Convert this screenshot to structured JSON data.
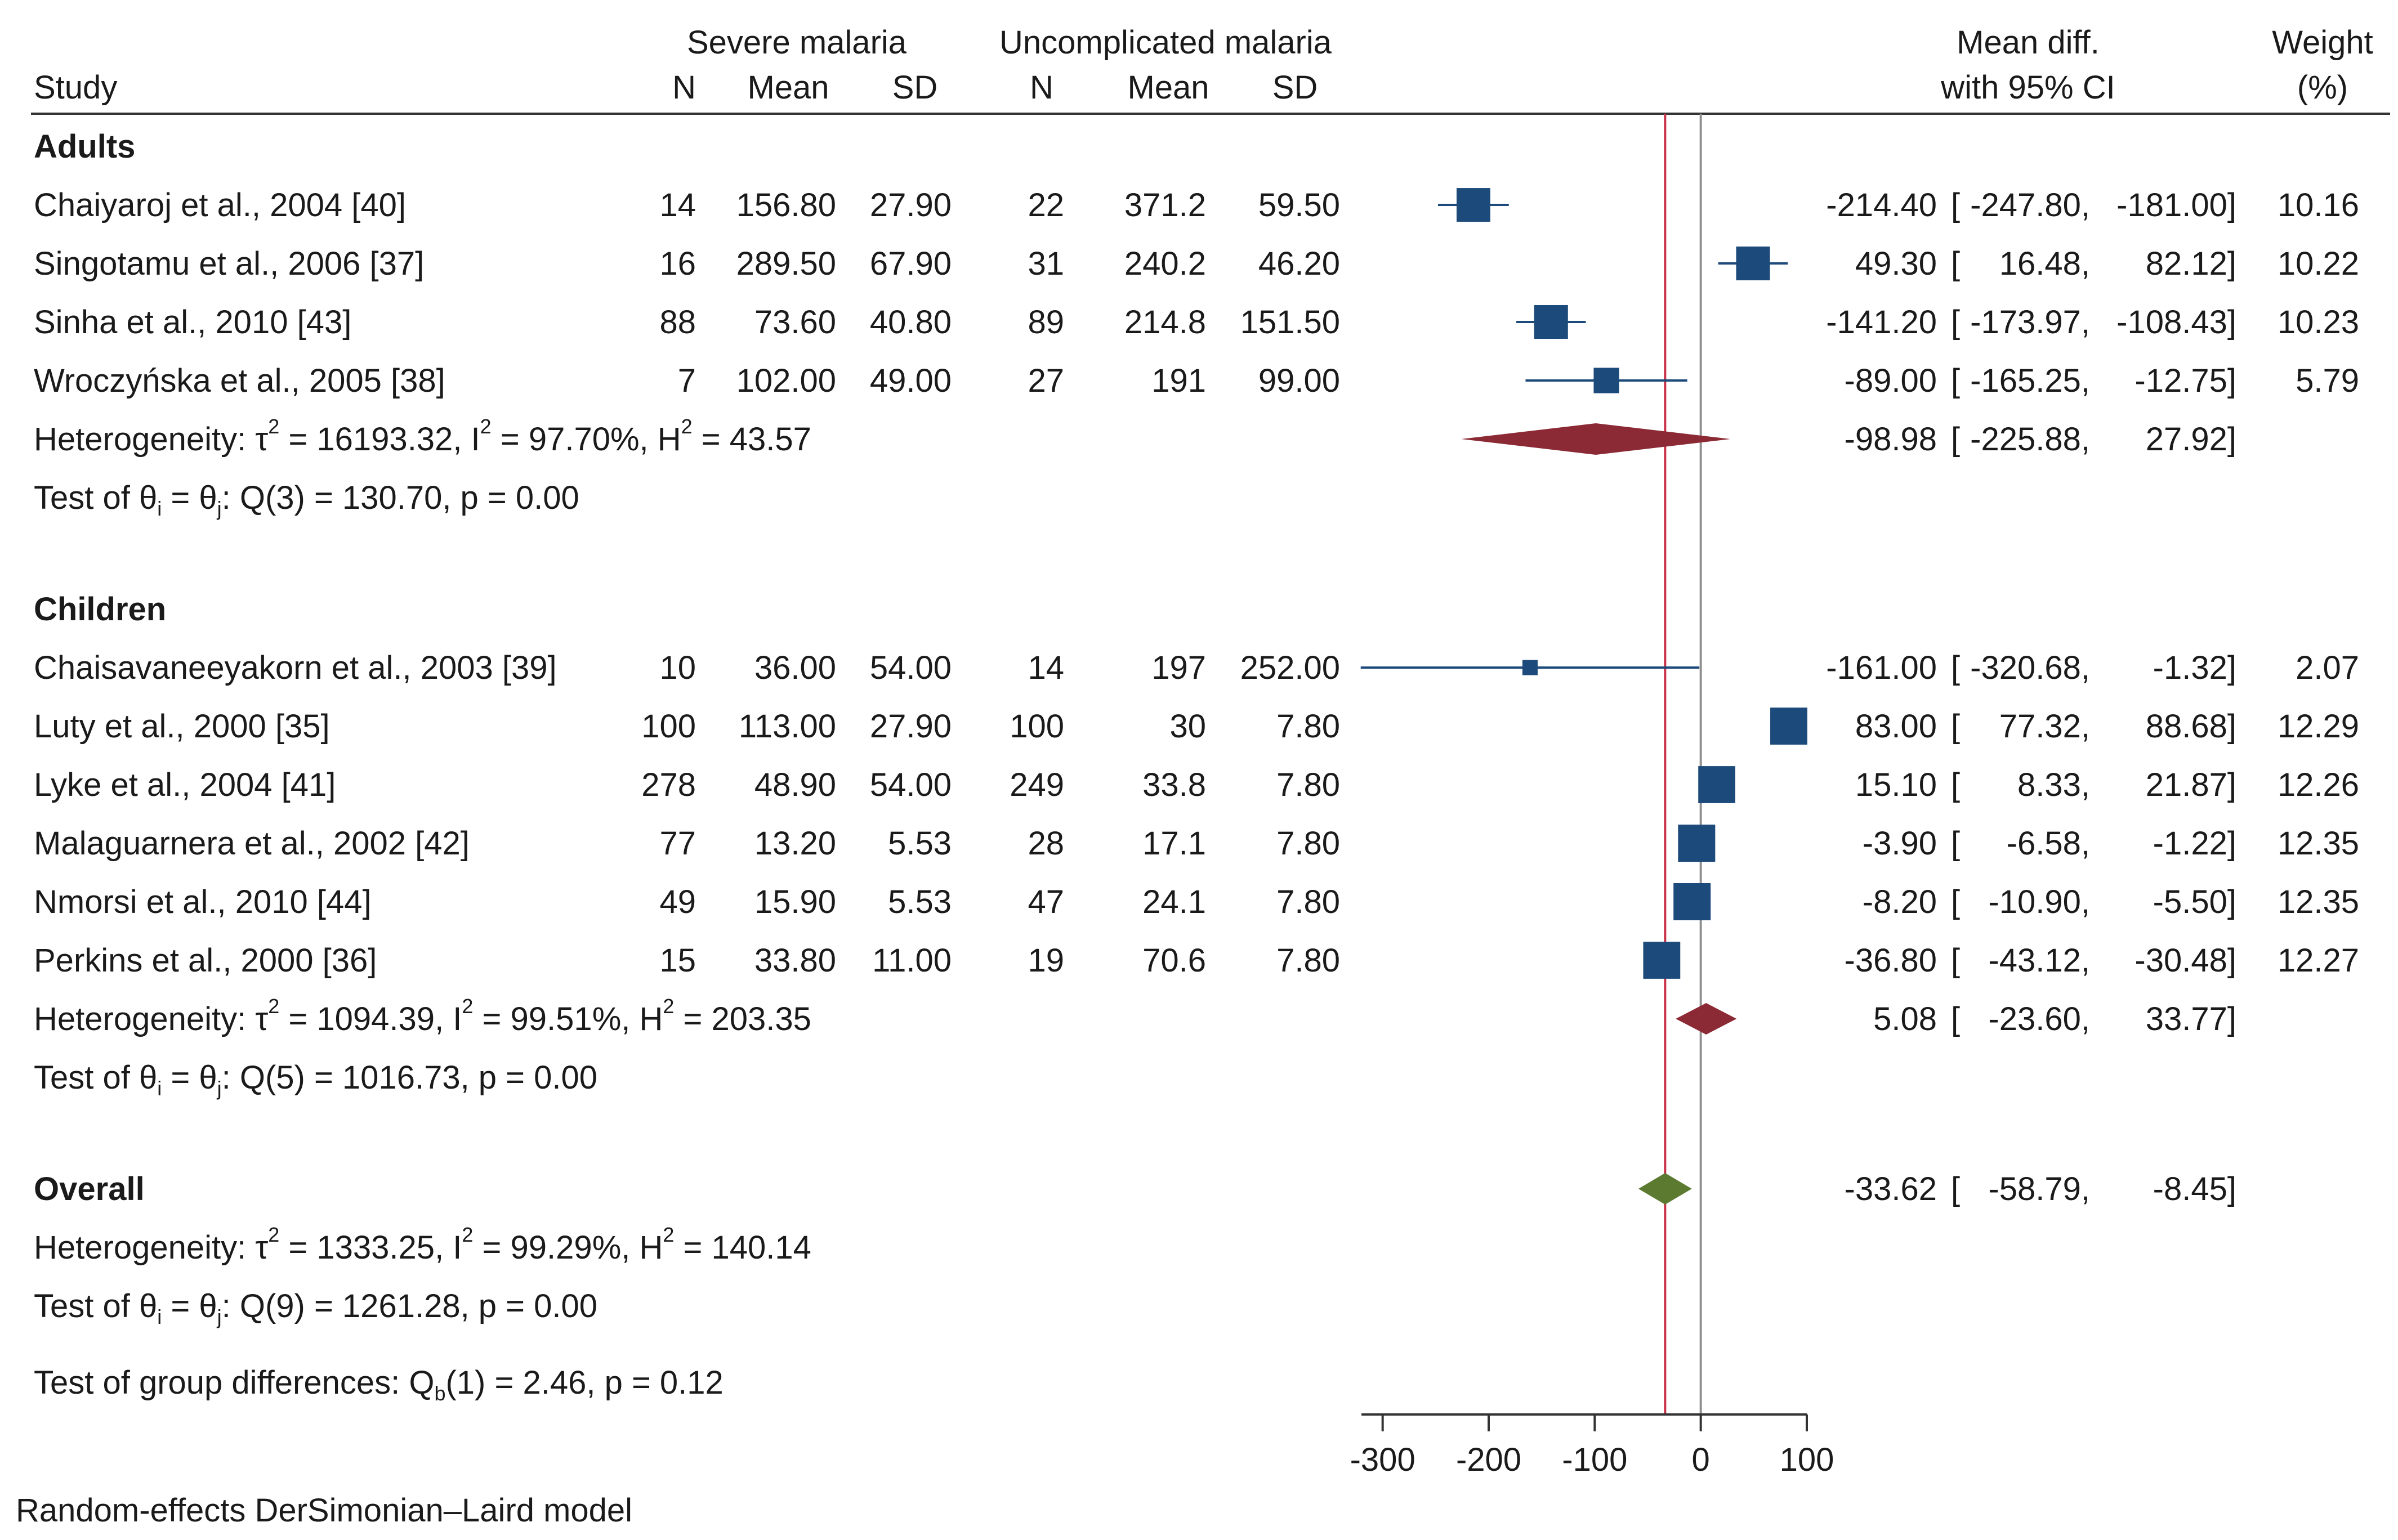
{
  "chart_data": {
    "type": "forest",
    "header": {
      "group_severe": "Severe malaria",
      "group_uncomplicated": "Uncomplicated malaria",
      "study": "Study",
      "n": "N",
      "mean": "Mean",
      "sd": "SD",
      "mean_diff_1": "Mean diff.",
      "mean_diff_2": "with 95% CI",
      "weight_1": "Weight",
      "weight_2": "(%)"
    },
    "subgroups": [
      {
        "name": "Adults",
        "studies": [
          {
            "study": "Chaiyaroj et al., 2004 [40]",
            "n1": "14",
            "mean1": "156.80",
            "sd1": "27.90",
            "n2": "22",
            "mean2": "371.2",
            "sd2": "59.50",
            "md": -214.4,
            "lo": -247.8,
            "hi": -181.0,
            "md_text": "-214.40",
            "lo_text": "-247.80",
            "hi_text": "-181.00",
            "weight": 10.16,
            "weight_text": "10.16"
          },
          {
            "study": "Singotamu et al., 2006 [37]",
            "n1": "16",
            "mean1": "289.50",
            "sd1": "67.90",
            "n2": "31",
            "mean2": "240.2",
            "sd2": "46.20",
            "md": 49.3,
            "lo": 16.48,
            "hi": 82.12,
            "md_text": "49.30",
            "lo_text": "16.48",
            "hi_text": "82.12",
            "weight": 10.22,
            "weight_text": "10.22"
          },
          {
            "study": "Sinha et al., 2010 [43]",
            "n1": "88",
            "mean1": "73.60",
            "sd1": "40.80",
            "n2": "89",
            "mean2": "214.8",
            "sd2": "151.50",
            "md": -141.2,
            "lo": -173.97,
            "hi": -108.43,
            "md_text": "-141.20",
            "lo_text": "-173.97",
            "hi_text": "-108.43",
            "weight": 10.23,
            "weight_text": "10.23"
          },
          {
            "study": "Wroczyńska et al., 2005 [38]",
            "n1": "7",
            "mean1": "102.00",
            "sd1": "49.00",
            "n2": "27",
            "mean2": "191",
            "sd2": "99.00",
            "md": -89.0,
            "lo": -165.25,
            "hi": -12.75,
            "md_text": "-89.00",
            "lo_text": "-165.25",
            "hi_text": "-12.75",
            "weight": 5.79,
            "weight_text": "5.79"
          }
        ],
        "heterogeneity": {
          "tau2": "16193.32",
          "i2": "97.70%",
          "h2": "43.57"
        },
        "test": {
          "label": "Q(3) = 130.70, p = 0.00"
        },
        "pooled": {
          "md": -98.98,
          "lo": -225.88,
          "hi": 27.92,
          "md_text": "-98.98",
          "lo_text": "-225.88",
          "hi_text": "27.92"
        }
      },
      {
        "name": "Children",
        "studies": [
          {
            "study": "Chaisavaneeyakorn et al., 2003 [39]",
            "n1": "10",
            "mean1": "36.00",
            "sd1": "54.00",
            "n2": "14",
            "mean2": "197",
            "sd2": "252.00",
            "md": -161.0,
            "lo": -320.68,
            "hi": -1.32,
            "md_text": "-161.00",
            "lo_text": "-320.68",
            "hi_text": "-1.32",
            "weight": 2.07,
            "weight_text": "2.07"
          },
          {
            "study": "Luty et al., 2000  [35]",
            "n1": "100",
            "mean1": "113.00",
            "sd1": "27.90",
            "n2": "100",
            "mean2": "30",
            "sd2": "7.80",
            "md": 83.0,
            "lo": 77.32,
            "hi": 88.68,
            "md_text": "83.00",
            "lo_text": "77.32",
            "hi_text": "88.68",
            "weight": 12.29,
            "weight_text": "12.29"
          },
          {
            "study": "Lyke et al., 2004 [41]",
            "n1": "278",
            "mean1": "48.90",
            "sd1": "54.00",
            "n2": "249",
            "mean2": "33.8",
            "sd2": "7.80",
            "md": 15.1,
            "lo": 8.33,
            "hi": 21.87,
            "md_text": "15.10",
            "lo_text": "8.33",
            "hi_text": "21.87",
            "weight": 12.26,
            "weight_text": "12.26"
          },
          {
            "study": "Malaguarnera et al., 2002 [42]",
            "n1": "77",
            "mean1": "13.20",
            "sd1": "5.53",
            "n2": "28",
            "mean2": "17.1",
            "sd2": "7.80",
            "md": -3.9,
            "lo": -6.58,
            "hi": -1.22,
            "md_text": "-3.90",
            "lo_text": "-6.58",
            "hi_text": "-1.22",
            "weight": 12.35,
            "weight_text": "12.35"
          },
          {
            "study": "Nmorsi et al., 2010 [44]",
            "n1": "49",
            "mean1": "15.90",
            "sd1": "5.53",
            "n2": "47",
            "mean2": "24.1",
            "sd2": "7.80",
            "md": -8.2,
            "lo": -10.9,
            "hi": -5.5,
            "md_text": "-8.20",
            "lo_text": "-10.90",
            "hi_text": "-5.50",
            "weight": 12.35,
            "weight_text": "12.35"
          },
          {
            "study": "Perkins et al., 2000 [36]",
            "n1": "15",
            "mean1": "33.80",
            "sd1": "11.00",
            "n2": "19",
            "mean2": "70.6",
            "sd2": "7.80",
            "md": -36.8,
            "lo": -43.12,
            "hi": -30.48,
            "md_text": "-36.80",
            "lo_text": "-43.12",
            "hi_text": "-30.48",
            "weight": 12.27,
            "weight_text": "12.27"
          }
        ],
        "heterogeneity": {
          "tau2": "1094.39",
          "i2": "99.51%",
          "h2": "203.35"
        },
        "test": {
          "label": "Q(5) = 1016.73, p = 0.00"
        },
        "pooled": {
          "md": 5.08,
          "lo": -23.6,
          "hi": 33.77,
          "md_text": "5.08",
          "lo_text": "-23.60",
          "hi_text": "33.77"
        }
      }
    ],
    "overall": {
      "label": "Overall",
      "md": -33.62,
      "lo": -58.79,
      "hi": -8.45,
      "md_text": "-33.62",
      "lo_text": "-58.79",
      "hi_text": "-8.45",
      "heterogeneity": {
        "tau2": "1333.25",
        "i2": "99.29%",
        "h2": "140.14"
      },
      "test": {
        "label": "Q(9) = 1261.28, p = 0.00"
      }
    },
    "group_test": {
      "prefix": "Test of group differences: Q",
      "sub": "b",
      "suffix": "(1) = 2.46, p = 0.12"
    },
    "x_axis": {
      "ticks": [
        -300,
        -200,
        -100,
        0,
        100
      ],
      "tick_labels": [
        "-300",
        "-200",
        "-100",
        "0",
        "100"
      ],
      "xlim": [
        -320,
        100
      ]
    },
    "reference_line": 0,
    "overall_line": -33.62,
    "footnote": "Random-effects DerSimonian–Laird model",
    "colors": {
      "box": "#1c4a7a",
      "subgroup_diamond": "#8b2a35",
      "overall_diamond": "#5c7a30",
      "overall_line": "#c8334a",
      "ref_line": "#909090",
      "text": "#1a1a1a"
    }
  }
}
